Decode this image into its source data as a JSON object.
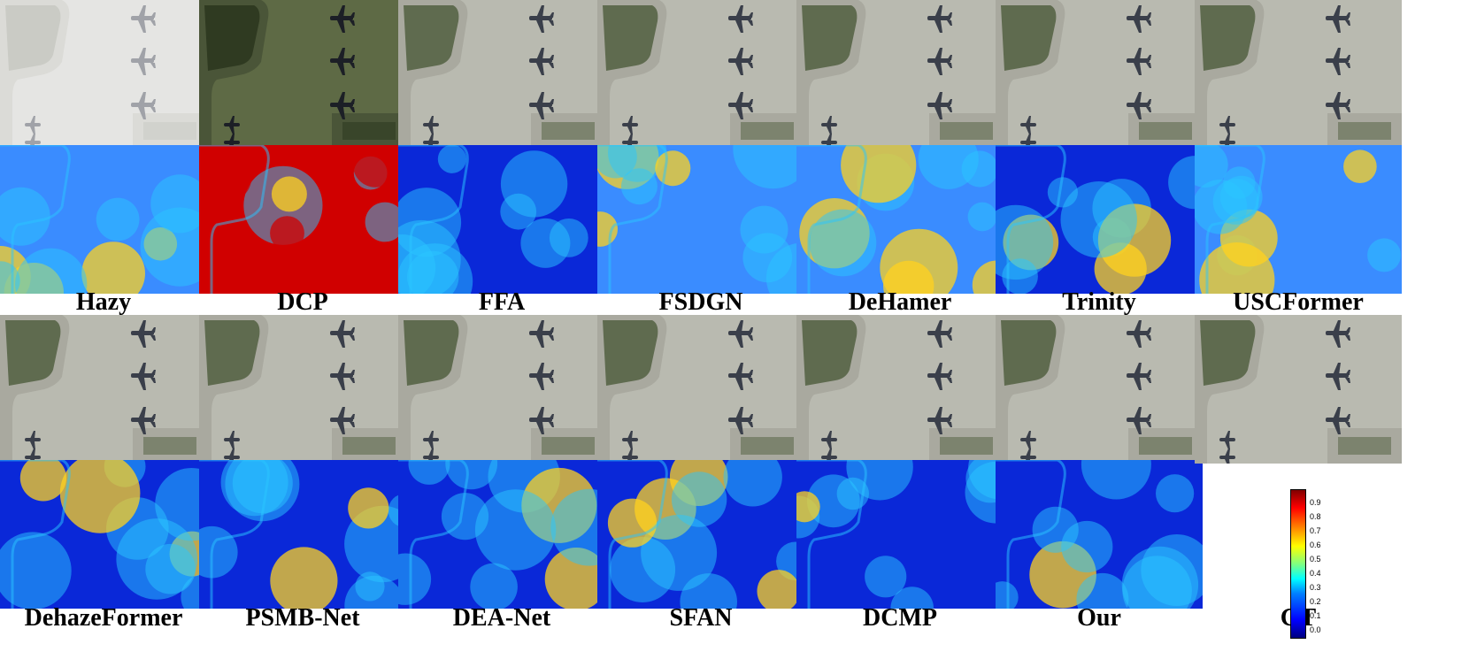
{
  "row1_labels": [
    "Hazy",
    "DCP",
    "FFA",
    "FSDGN",
    "DeHamer",
    "Trinity",
    "USCFormer"
  ],
  "row2_labels": [
    "DehazeFormer",
    "PSMB-Net",
    "DEA-Net",
    "SFAN",
    "DCMP",
    "Our",
    "GT"
  ],
  "colorbar_ticks": [
    "0.9",
    "0.8",
    "0.7",
    "0.6",
    "0.5",
    "0.4",
    "0.3",
    "0.2",
    "0.1",
    "0.0"
  ],
  "colors": {
    "hazy_tint": "#d8d8d4",
    "dcp_tint": "#5e6a45",
    "clear_tint": "#b9bab0",
    "error_low": "#0a28d8",
    "error_mid": "#29c6ff",
    "error_high": "#d00000"
  },
  "error_levels": {
    "Hazy": 0.55,
    "DCP": 0.85,
    "FFA": 0.12,
    "FSDGN": 0.32,
    "DeHamer": 0.35,
    "Trinity": 0.22,
    "USCFormer": 0.45,
    "DehazeFormer": 0.25,
    "PSMB-Net": 0.15,
    "DEA-Net": 0.2,
    "SFAN": 0.12,
    "DCMP": 0.2,
    "Our": 0.05
  }
}
